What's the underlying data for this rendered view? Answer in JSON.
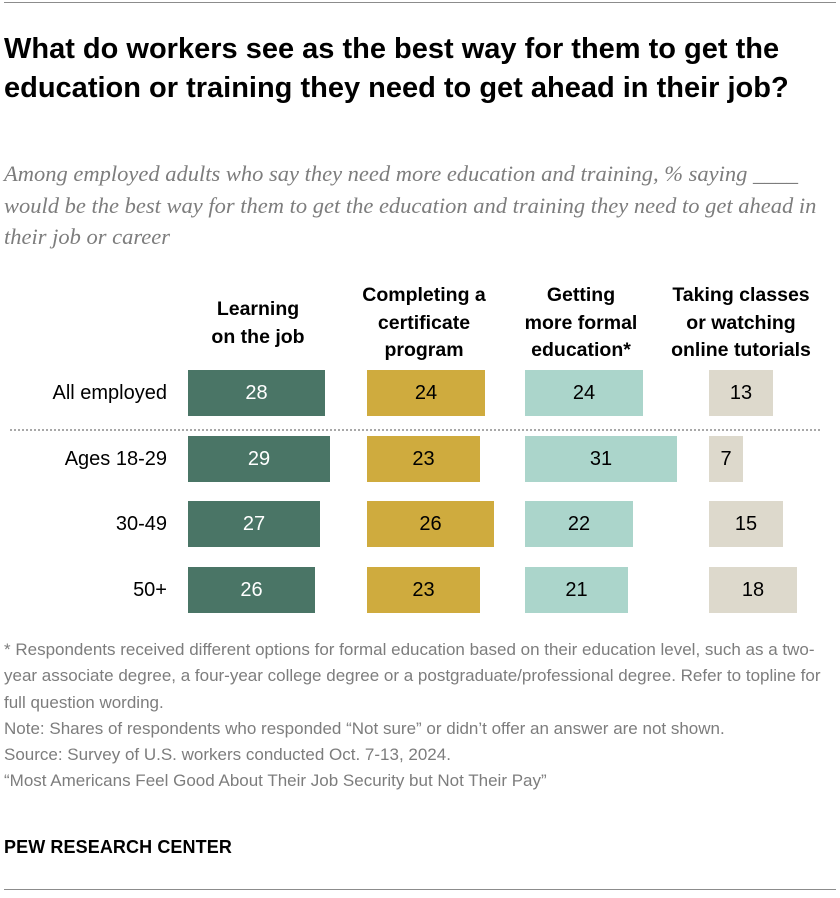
{
  "title": "What do workers see as the best way for them to get the education or training they need to get ahead in their job?",
  "subtitle": "Among employed adults who say they need more education and training, % saying ____ would be the best way for them to get the education and training they need to get ahead in their job or career",
  "notes": {
    "footnote": "* Respondents received different options for formal education based on their education level, such as a two-year associate degree, a four-year college degree or a postgraduate/professional degree. Refer to topline for full question wording.",
    "note": "Note: Shares of respondents who responded “Not sure” or didn’t offer an answer are not shown.",
    "source": "Source: Survey of U.S. workers conducted Oct. 7-13, 2024.",
    "report": "“Most Americans Feel Good About Their Job Security but Not Their Pay”"
  },
  "brand": "PEW RESEARCH CENTER",
  "chart_data": {
    "type": "bar",
    "title": "What do workers see as the best way for them to get the education or training they need to get ahead in their job?",
    "categories": [
      "All employed",
      "Ages 18-29",
      "30-49",
      "50+"
    ],
    "series": [
      {
        "name": "Learning\non the job",
        "color": "#4a7566",
        "text_color": "#ffffff",
        "values": [
          28,
          29,
          27,
          26
        ]
      },
      {
        "name": "Completing a\ncertificate\nprogram",
        "color": "#cfab3e",
        "text_color": "#000000",
        "values": [
          24,
          23,
          26,
          23
        ]
      },
      {
        "name": "Getting\nmore formal\neducation*",
        "color": "#abd5cb",
        "text_color": "#000000",
        "values": [
          24,
          31,
          22,
          21
        ]
      },
      {
        "name": "Taking classes\nor watching\nonline tutorials",
        "color": "#ddd9cc",
        "text_color": "#000000",
        "values": [
          13,
          7,
          15,
          18
        ]
      }
    ],
    "grid": false,
    "legend": "column headers above bars"
  }
}
